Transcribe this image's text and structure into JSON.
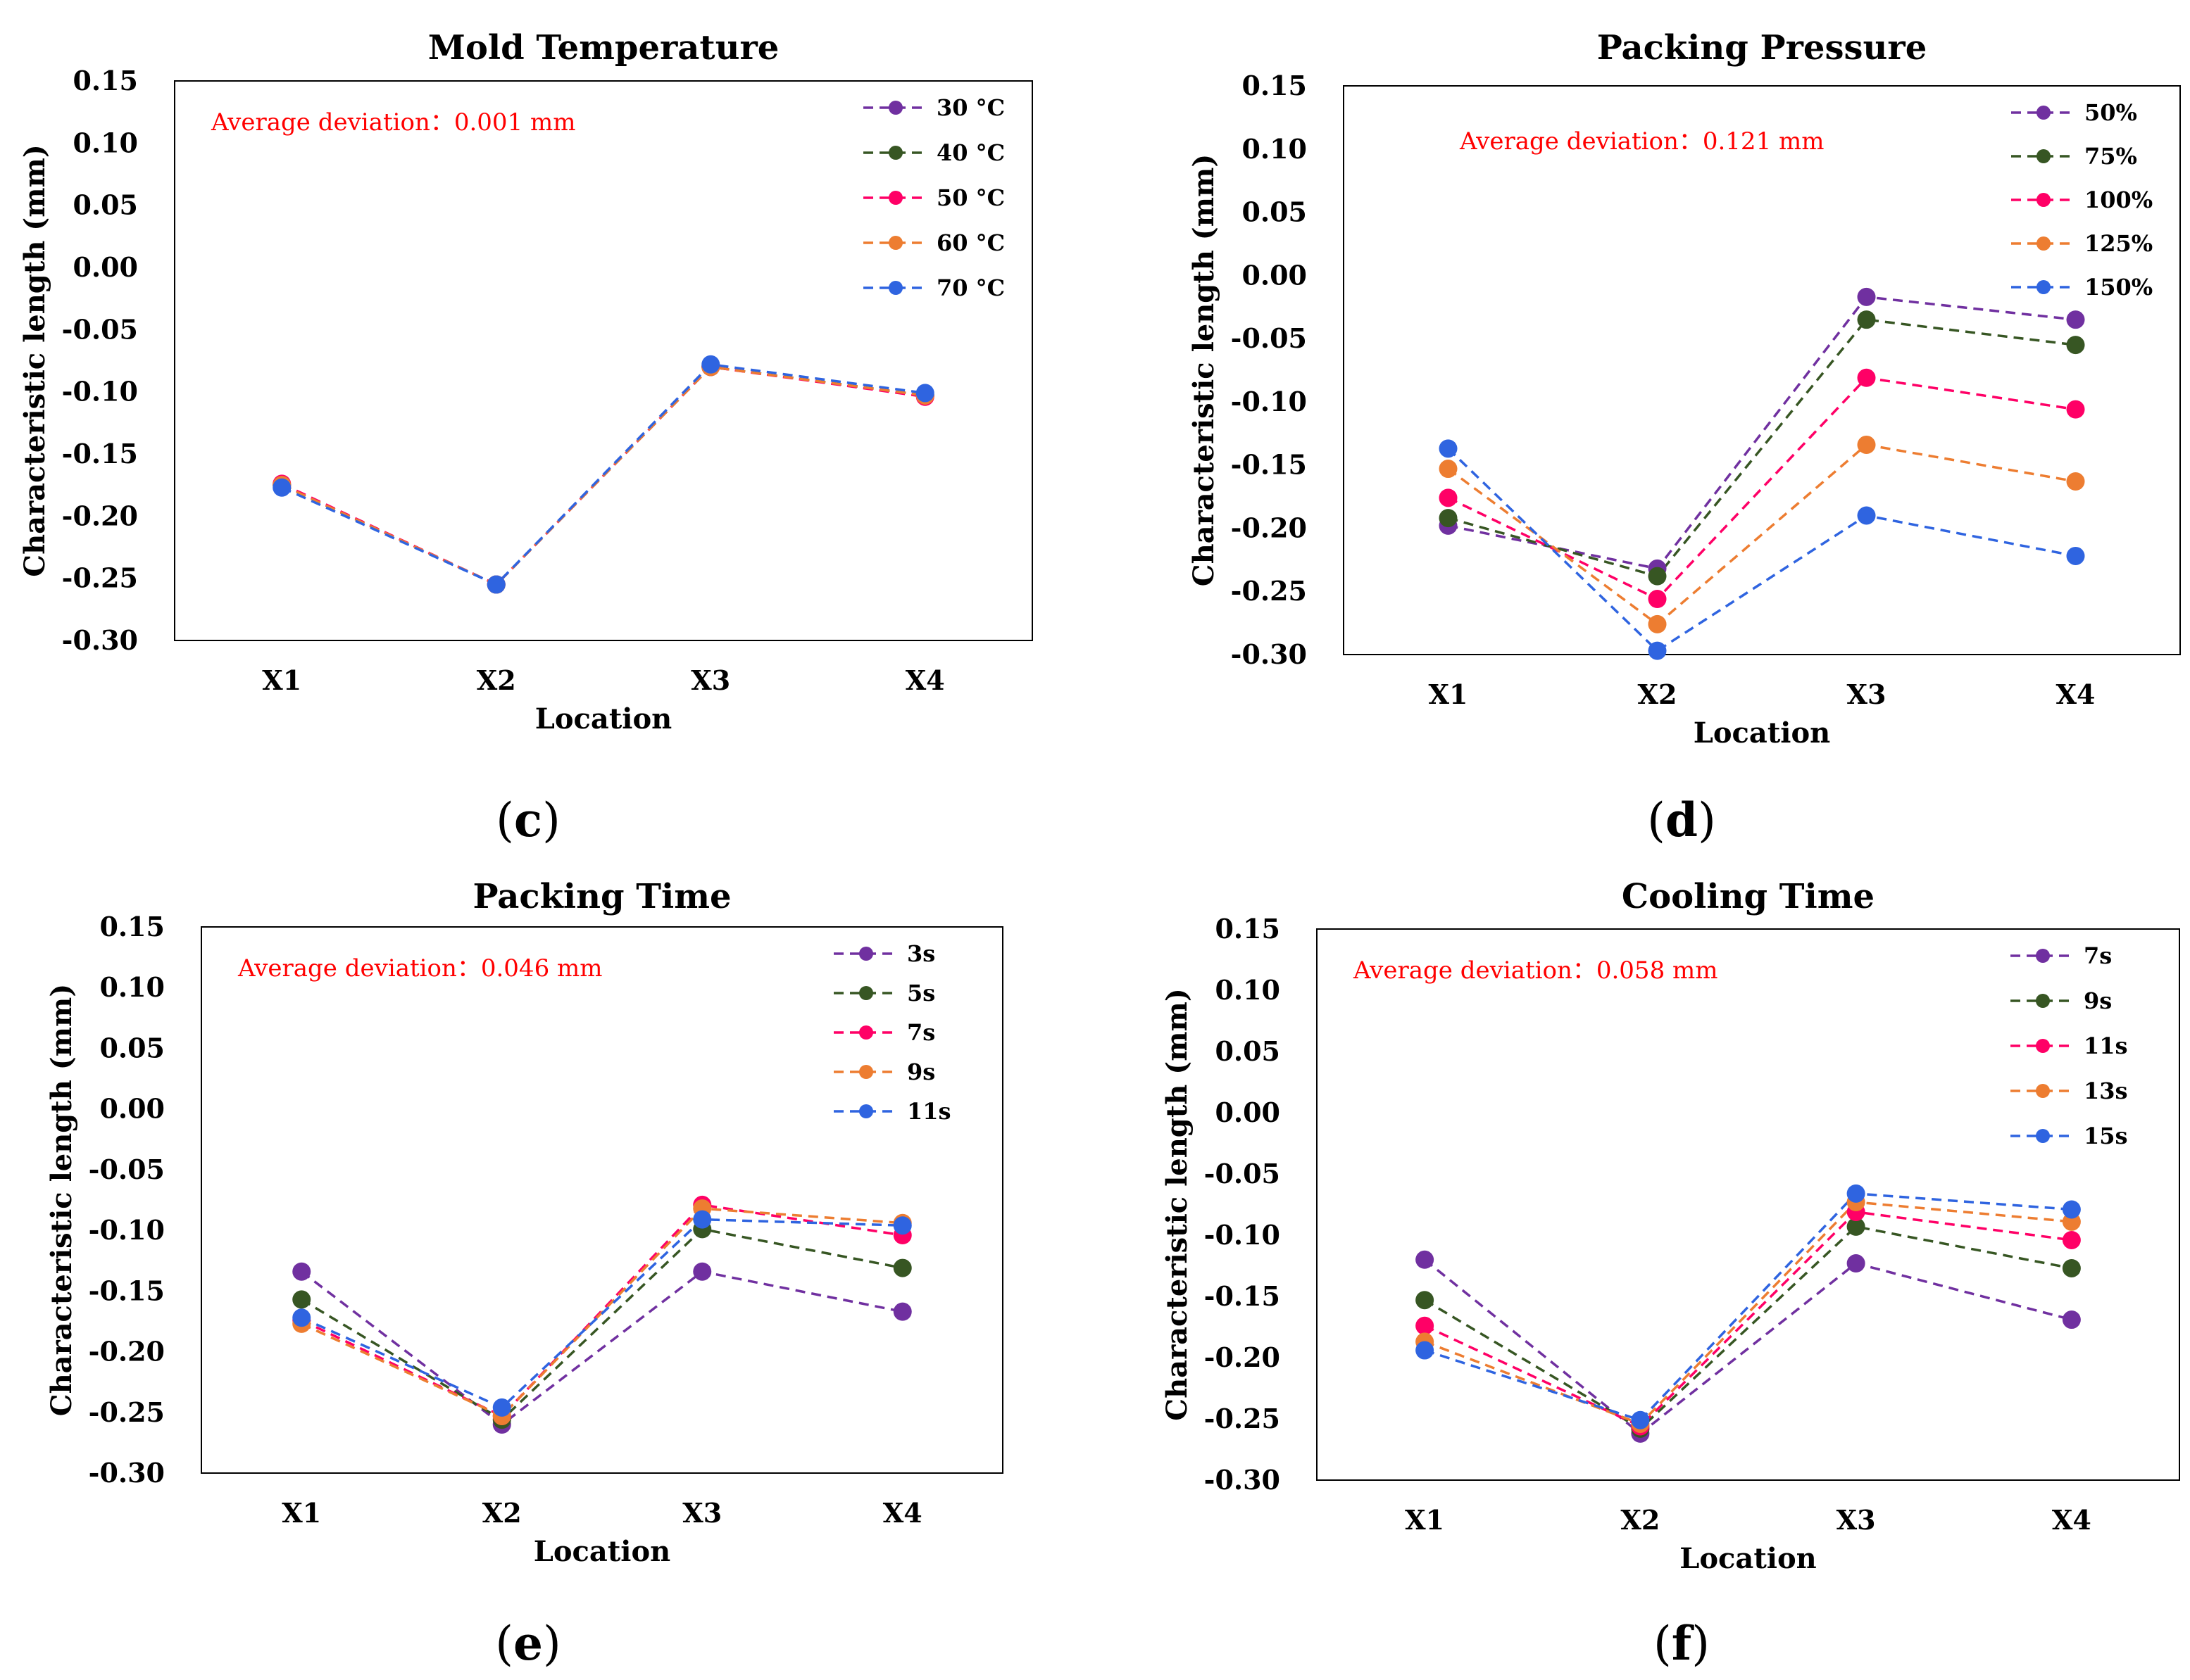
{
  "chart_data": [
    {
      "type": "line",
      "panel": "(c)",
      "panel_letter": "c",
      "title": "Mold Temperature",
      "xlabel": "Location",
      "ylabel": "Characteristic length (mm)",
      "categories": [
        "X1",
        "X2",
        "X3",
        "X4"
      ],
      "ylim": [
        -0.3,
        0.15
      ],
      "yticks": [
        "0.15",
        "0.10",
        "0.05",
        "0.00",
        "-0.05",
        "-0.10",
        "-0.15",
        "-0.20",
        "-0.25",
        "-0.30"
      ],
      "annotation": "Average deviation：0.001 mm",
      "legend_position": "top-right",
      "series": [
        {
          "name": "30 °C",
          "color": "#7030a0",
          "values": [
            -0.175,
            -0.255,
            -0.08,
            -0.103
          ]
        },
        {
          "name": "40 °C",
          "color": "#375623",
          "values": [
            -0.175,
            -0.255,
            -0.08,
            -0.103
          ]
        },
        {
          "name": "50 °C",
          "color": "#ff0066",
          "values": [
            -0.174,
            -0.255,
            -0.08,
            -0.104
          ]
        },
        {
          "name": "60 °C",
          "color": "#ed7d31",
          "values": [
            -0.175,
            -0.255,
            -0.08,
            -0.103
          ]
        },
        {
          "name": "70 °C",
          "color": "#2f64e0",
          "values": [
            -0.177,
            -0.255,
            -0.078,
            -0.101
          ]
        }
      ]
    },
    {
      "type": "line",
      "panel": "(d)",
      "panel_letter": "d",
      "title": "Packing Pressure",
      "xlabel": "Location",
      "ylabel": "Characteristic length (mm)",
      "categories": [
        "X1",
        "X2",
        "X3",
        "X4"
      ],
      "ylim": [
        -0.3,
        0.15
      ],
      "yticks": [
        "0.15",
        "0.10",
        "0.05",
        "0.00",
        "-0.05",
        "-0.10",
        "-0.15",
        "-0.20",
        "-0.25",
        "-0.30"
      ],
      "annotation": "Average deviation：0.121 mm",
      "legend_position": "top-right",
      "series": [
        {
          "name": "50%",
          "color": "#7030a0",
          "values": [
            -0.198,
            -0.232,
            -0.017,
            -0.035
          ]
        },
        {
          "name": "75%",
          "color": "#375623",
          "values": [
            -0.192,
            -0.238,
            -0.035,
            -0.055
          ]
        },
        {
          "name": "100%",
          "color": "#ff0066",
          "values": [
            -0.176,
            -0.256,
            -0.081,
            -0.106
          ]
        },
        {
          "name": "125%",
          "color": "#ed7d31",
          "values": [
            -0.153,
            -0.276,
            -0.134,
            -0.163
          ]
        },
        {
          "name": "150%",
          "color": "#2f64e0",
          "values": [
            -0.137,
            -0.297,
            -0.19,
            -0.222
          ]
        }
      ]
    },
    {
      "type": "line",
      "panel": "(e)",
      "panel_letter": "e",
      "title": "Packing Time",
      "xlabel": "Location",
      "ylabel": "Characteristic length (mm)",
      "categories": [
        "X1",
        "X2",
        "X3",
        "X4"
      ],
      "ylim": [
        -0.3,
        0.15
      ],
      "yticks": [
        "0.15",
        "0.10",
        "0.05",
        "0.00",
        "-0.05",
        "-0.10",
        "-0.15",
        "-0.20",
        "-0.25",
        "-0.30"
      ],
      "annotation": "Average deviation：0.046 mm",
      "legend_position": "top-right",
      "series": [
        {
          "name": "3s",
          "color": "#7030a0",
          "values": [
            -0.134,
            -0.26,
            -0.134,
            -0.167
          ]
        },
        {
          "name": "5s",
          "color": "#375623",
          "values": [
            -0.157,
            -0.256,
            -0.099,
            -0.131
          ]
        },
        {
          "name": "7s",
          "color": "#ff0066",
          "values": [
            -0.174,
            -0.253,
            -0.079,
            -0.104
          ]
        },
        {
          "name": "9s",
          "color": "#ed7d31",
          "values": [
            -0.177,
            -0.253,
            -0.082,
            -0.094
          ]
        },
        {
          "name": "11s",
          "color": "#2f64e0",
          "values": [
            -0.172,
            -0.246,
            -0.091,
            -0.096
          ]
        }
      ]
    },
    {
      "type": "line",
      "panel": "(f)",
      "panel_letter": "f",
      "title": "Cooling Time",
      "xlabel": "Location",
      "ylabel": "Characteristic length (mm)",
      "categories": [
        "X1",
        "X2",
        "X3",
        "X4"
      ],
      "ylim": [
        -0.3,
        0.15
      ],
      "yticks": [
        "0.15",
        "0.10",
        "0.05",
        "0.00",
        "-0.05",
        "-0.10",
        "-0.15",
        "-0.20",
        "-0.25",
        "-0.30"
      ],
      "annotation": "Average deviation：0.058 mm",
      "legend_position": "top-right",
      "series": [
        {
          "name": "7s",
          "color": "#7030a0",
          "values": [
            -0.12,
            -0.262,
            -0.123,
            -0.169
          ]
        },
        {
          "name": "9s",
          "color": "#375623",
          "values": [
            -0.153,
            -0.258,
            -0.093,
            -0.127
          ]
        },
        {
          "name": "11s",
          "color": "#ff0066",
          "values": [
            -0.174,
            -0.256,
            -0.081,
            -0.104
          ]
        },
        {
          "name": "13s",
          "color": "#ed7d31",
          "values": [
            -0.187,
            -0.254,
            -0.073,
            -0.089
          ]
        },
        {
          "name": "15s",
          "color": "#2f64e0",
          "values": [
            -0.194,
            -0.251,
            -0.066,
            -0.079
          ]
        }
      ]
    }
  ]
}
